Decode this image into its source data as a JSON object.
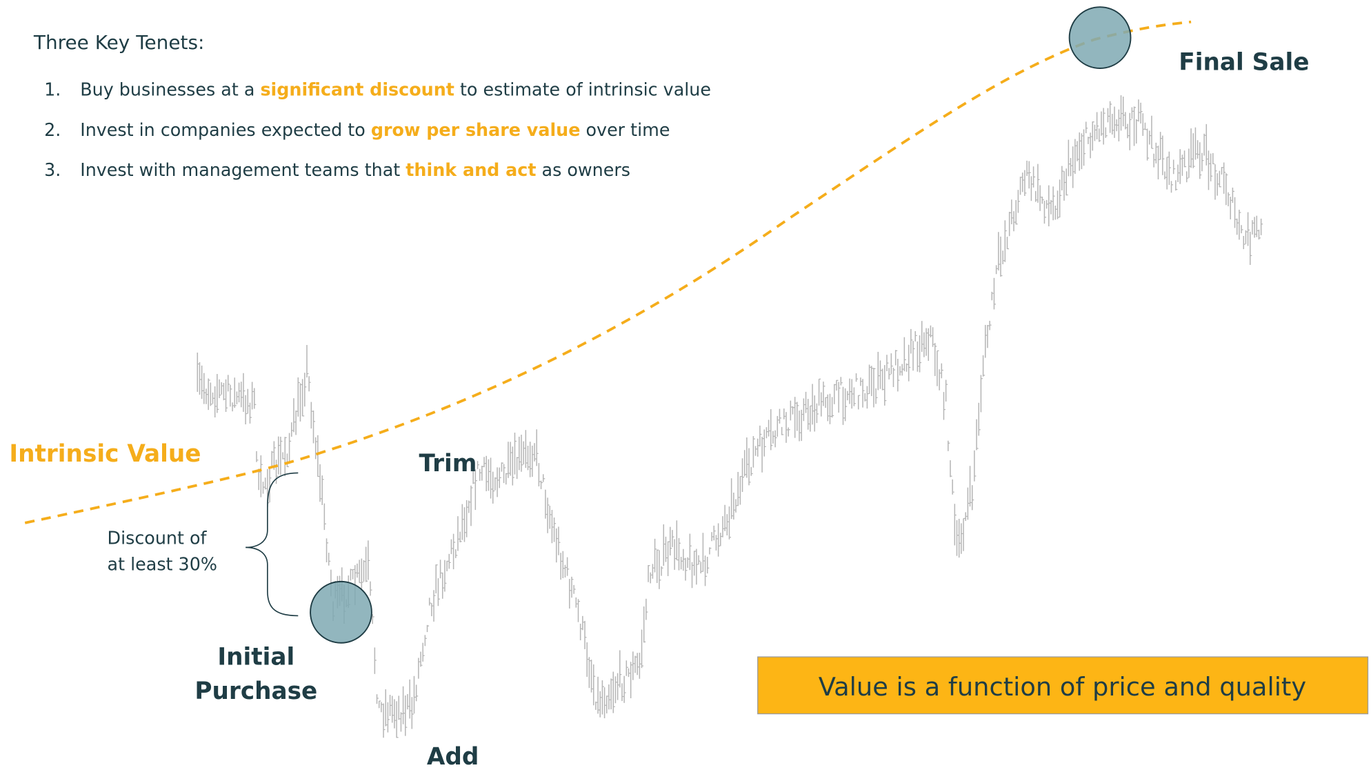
{
  "tenets": {
    "heading": "Three Key Tenets:",
    "items": [
      {
        "number": "1.",
        "before": "Buy businesses at a ",
        "highlight": "significant discount",
        "after": " to estimate of intrinsic value"
      },
      {
        "number": "2.",
        "before": "Invest in companies expected to ",
        "highlight": "grow per share value",
        "after": " over time"
      },
      {
        "number": "3.",
        "before": "Invest with management teams that ",
        "highlight": "think and act",
        "after": " as owners"
      }
    ]
  },
  "labels": {
    "intrinsic_value": "Intrinsic Value",
    "trim": "Trim",
    "final_sale": "Final Sale",
    "add": "Add",
    "initial_purchase": [
      "Initial",
      "Purchase"
    ],
    "discount": [
      "Discount of",
      "at least 30%"
    ]
  },
  "callout": "Value is a function of price and quality"
}
